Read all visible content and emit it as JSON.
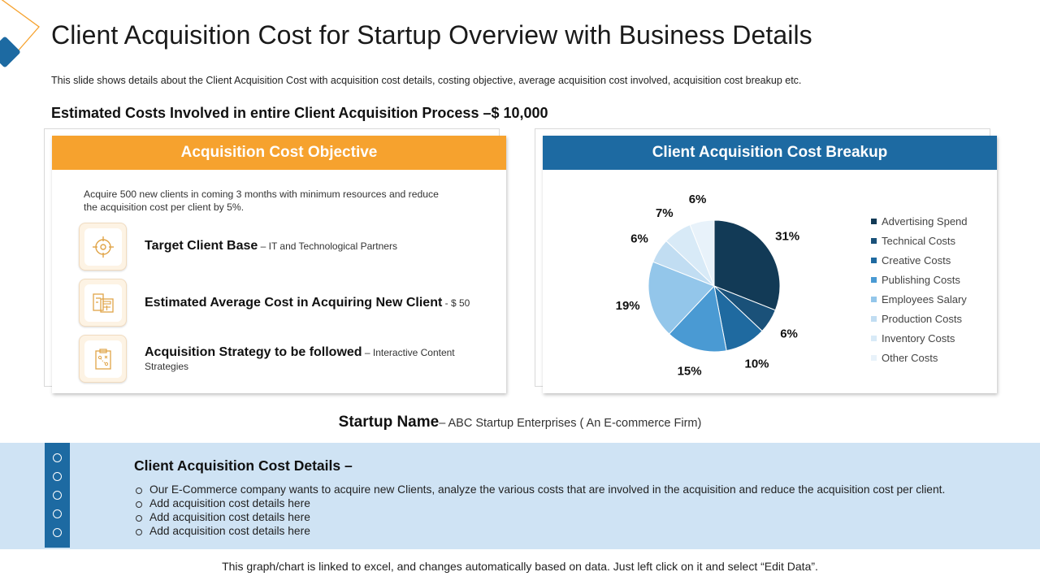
{
  "slide": {
    "title": "Client Acquisition Cost for Startup Overview with Business Details",
    "subtitle": "This slide shows details about the Client Acquisition Cost with acquisition cost details, costing objective, average acquisition cost involved, acquisition cost breakup etc.",
    "estimate": "Estimated Costs Involved in entire Client Acquisition Process –$ 10,000"
  },
  "objective": {
    "header": "Acquisition Cost Objective",
    "text": "Acquire 500 new clients in coming 3 months with minimum resources and reduce the acquisition cost per client by 5%.",
    "items": [
      {
        "icon": "target-icon",
        "label": "Target Client Base",
        "detail": " – IT and Technological  Partners"
      },
      {
        "icon": "calculator-icon",
        "label": "Estimated Average Cost  in Acquiring New Client",
        "detail": "  - $ 50"
      },
      {
        "icon": "strategy-board-icon",
        "label": "Acquisition Strategy to be followed",
        "detail": " – Interactive Content Strategies"
      }
    ]
  },
  "breakup": {
    "header": "Client Acquisition Cost Breakup"
  },
  "chart_data": {
    "type": "pie",
    "categories": [
      "Advertising Spend",
      "Technical Costs",
      "Creative Costs",
      "Publishing Costs",
      "Employees Salary",
      "Production Costs",
      "Inventory Costs",
      "Other Costs"
    ],
    "values": [
      31,
      6,
      10,
      15,
      19,
      6,
      7,
      6
    ],
    "labels": [
      "31%",
      "6%",
      "10%",
      "15%",
      "19%",
      "6%",
      "7%",
      "6%"
    ],
    "colors": [
      "#123a56",
      "#1a5179",
      "#1f6aa0",
      "#4a9ad3",
      "#93c6ea",
      "#c1ddf2",
      "#d8eaf7",
      "#e8f2fa"
    ],
    "legend_position": "right",
    "start_angle_deg": 0,
    "direction": "clockwise"
  },
  "startup": {
    "label": "Startup Name",
    "value": "– ABC Startup Enterprises ( An E-commerce Firm)"
  },
  "details": {
    "title": "Client Acquisition Cost Details –",
    "items": [
      "Our E-Commerce company wants to acquire new Clients, analyze the various costs that are involved in the acquisition and reduce the acquisition cost per client.",
      "Add acquisition cost details here",
      "Add acquisition cost details here",
      "Add acquisition cost details here"
    ]
  },
  "footer": "This graph/chart is linked to excel, and changes automatically based on data.  Just left click on it and select “Edit Data”.",
  "theme": {
    "orange": "#f6a22e",
    "blue": "#1d6aa2",
    "band": "#cfe3f4"
  }
}
